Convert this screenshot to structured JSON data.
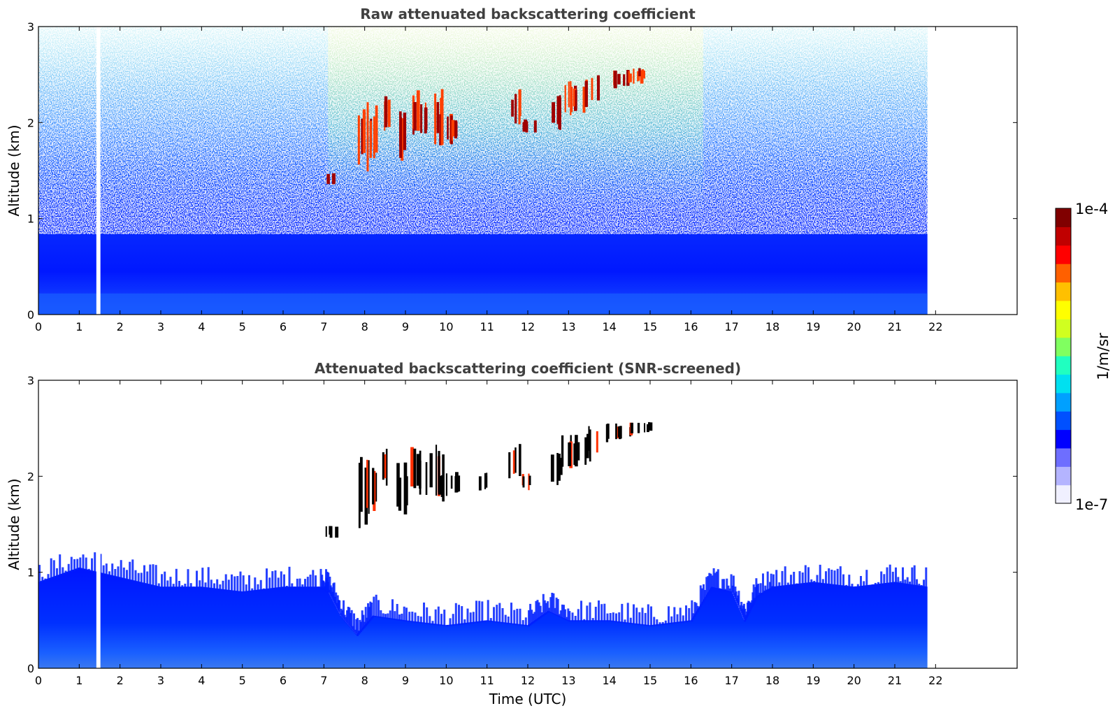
{
  "chart_data": [
    {
      "type": "heatmap",
      "title": "Raw attenuated backscattering coefficient",
      "xlabel": "",
      "ylabel": "Altitude (km)",
      "xlim": [
        0,
        24
      ],
      "ylim": [
        0,
        3
      ],
      "xticks": [
        "0",
        "1",
        "2",
        "3",
        "4",
        "5",
        "6",
        "7",
        "8",
        "9",
        "10",
        "11",
        "12",
        "13",
        "14",
        "15",
        "16",
        "17",
        "18",
        "19",
        "20",
        "21",
        "22"
      ],
      "yticks": [
        "0",
        "1",
        "2",
        "3"
      ],
      "data_time_range": [
        0,
        21.8
      ],
      "gap_time_range": [
        1.42,
        1.52
      ],
      "grid": false,
      "cloud_patches": [
        {
          "t": 7.15,
          "z": [
            1.35,
            1.5
          ]
        },
        {
          "t": 7.95,
          "z": [
            1.45,
            2.25
          ]
        },
        {
          "t": 8.15,
          "z": [
            1.55,
            2.2
          ]
        },
        {
          "t": 8.55,
          "z": [
            1.9,
            2.3
          ]
        },
        {
          "t": 8.85,
          "z": [
            1.6,
            2.15
          ]
        },
        {
          "t": 9.25,
          "z": [
            1.8,
            2.35
          ]
        },
        {
          "t": 9.45,
          "z": [
            1.8,
            2.25
          ]
        },
        {
          "t": 9.75,
          "z": [
            1.7,
            2.35
          ]
        },
        {
          "t": 9.95,
          "z": [
            1.75,
            2.1
          ]
        },
        {
          "t": 10.2,
          "z": [
            1.8,
            2.05
          ]
        },
        {
          "t": 11.65,
          "z": [
            1.95,
            2.35
          ]
        },
        {
          "t": 12.0,
          "z": [
            1.85,
            2.05
          ]
        },
        {
          "t": 12.65,
          "z": [
            1.9,
            2.3
          ]
        },
        {
          "t": 12.95,
          "z": [
            2.05,
            2.45
          ]
        },
        {
          "t": 13.25,
          "z": [
            2.05,
            2.45
          ]
        },
        {
          "t": 13.55,
          "z": [
            2.15,
            2.55
          ]
        },
        {
          "t": 14.05,
          "z": [
            2.35,
            2.55
          ]
        },
        {
          "t": 14.35,
          "z": [
            2.38,
            2.55
          ]
        },
        {
          "t": 14.65,
          "z": [
            2.4,
            2.57
          ]
        },
        {
          "t": 14.85,
          "z": [
            2.45,
            2.57
          ]
        }
      ]
    },
    {
      "type": "heatmap",
      "title": "Attenuated backscattering coefficient (SNR-screened)",
      "xlabel": "Time (UTC)",
      "ylabel": "Altitude (km)",
      "xlim": [
        0,
        24
      ],
      "ylim": [
        0,
        3
      ],
      "xticks": [
        "0",
        "1",
        "2",
        "3",
        "4",
        "5",
        "6",
        "7",
        "8",
        "9",
        "10",
        "11",
        "12",
        "13",
        "14",
        "15",
        "16",
        "17",
        "18",
        "19",
        "20",
        "21",
        "22"
      ],
      "yticks": [
        "0",
        "1",
        "2",
        "3"
      ],
      "data_time_range": [
        0,
        21.8
      ],
      "gap_time_range": [
        1.42,
        1.52
      ],
      "grid": false,
      "boundary_layer_top": [
        {
          "t": 0.0,
          "z": 0.9
        },
        {
          "t": 1.0,
          "z": 1.05
        },
        {
          "t": 2.0,
          "z": 0.95
        },
        {
          "t": 3.0,
          "z": 0.85
        },
        {
          "t": 4.0,
          "z": 0.85
        },
        {
          "t": 5.0,
          "z": 0.8
        },
        {
          "t": 6.0,
          "z": 0.85
        },
        {
          "t": 6.9,
          "z": 0.85
        },
        {
          "t": 7.1,
          "z": 0.8
        },
        {
          "t": 7.4,
          "z": 0.55
        },
        {
          "t": 7.8,
          "z": 0.35
        },
        {
          "t": 8.2,
          "z": 0.55
        },
        {
          "t": 9.0,
          "z": 0.5
        },
        {
          "t": 10.0,
          "z": 0.45
        },
        {
          "t": 11.0,
          "z": 0.5
        },
        {
          "t": 12.0,
          "z": 0.45
        },
        {
          "t": 12.5,
          "z": 0.6
        },
        {
          "t": 13.0,
          "z": 0.5
        },
        {
          "t": 14.0,
          "z": 0.5
        },
        {
          "t": 15.0,
          "z": 0.45
        },
        {
          "t": 16.0,
          "z": 0.5
        },
        {
          "t": 16.5,
          "z": 0.85
        },
        {
          "t": 17.0,
          "z": 0.8
        },
        {
          "t": 17.3,
          "z": 0.5
        },
        {
          "t": 17.6,
          "z": 0.75
        },
        {
          "t": 18.0,
          "z": 0.85
        },
        {
          "t": 19.0,
          "z": 0.9
        },
        {
          "t": 20.0,
          "z": 0.85
        },
        {
          "t": 21.0,
          "z": 0.9
        },
        {
          "t": 21.8,
          "z": 0.85
        }
      ],
      "cloud_patches": [
        {
          "t": 7.15,
          "z": [
            1.35,
            1.5
          ]
        },
        {
          "t": 7.95,
          "z": [
            1.45,
            2.25
          ]
        },
        {
          "t": 8.15,
          "z": [
            1.55,
            2.2
          ]
        },
        {
          "t": 8.55,
          "z": [
            1.9,
            2.3
          ]
        },
        {
          "t": 8.85,
          "z": [
            1.6,
            2.15
          ]
        },
        {
          "t": 9.25,
          "z": [
            1.8,
            2.35
          ]
        },
        {
          "t": 9.45,
          "z": [
            1.8,
            2.25
          ]
        },
        {
          "t": 9.75,
          "z": [
            1.7,
            2.35
          ]
        },
        {
          "t": 9.95,
          "z": [
            1.75,
            2.1
          ]
        },
        {
          "t": 10.2,
          "z": [
            1.8,
            2.05
          ]
        },
        {
          "t": 10.85,
          "z": [
            1.85,
            2.05
          ]
        },
        {
          "t": 11.65,
          "z": [
            1.95,
            2.35
          ]
        },
        {
          "t": 12.0,
          "z": [
            1.85,
            2.05
          ]
        },
        {
          "t": 12.65,
          "z": [
            1.9,
            2.3
          ]
        },
        {
          "t": 12.95,
          "z": [
            2.05,
            2.45
          ]
        },
        {
          "t": 13.25,
          "z": [
            2.05,
            2.45
          ]
        },
        {
          "t": 13.55,
          "z": [
            2.15,
            2.55
          ]
        },
        {
          "t": 14.05,
          "z": [
            2.35,
            2.55
          ]
        },
        {
          "t": 14.35,
          "z": [
            2.38,
            2.55
          ]
        },
        {
          "t": 14.65,
          "z": [
            2.4,
            2.57
          ]
        },
        {
          "t": 14.85,
          "z": [
            2.45,
            2.57
          ]
        }
      ]
    }
  ],
  "colorbar": {
    "label": "1/m/sr",
    "max_label": "1e-4",
    "min_label": "1e-7",
    "scale": "log",
    "colormap": [
      "#f0f0ff",
      "#b4b4ff",
      "#6e6eff",
      "#0000ff",
      "#0050ff",
      "#00a0ff",
      "#00e0f0",
      "#20ffc0",
      "#80ff60",
      "#d0ff20",
      "#ffff00",
      "#ffc000",
      "#ff6000",
      "#ff0000",
      "#c00000",
      "#800000"
    ]
  }
}
